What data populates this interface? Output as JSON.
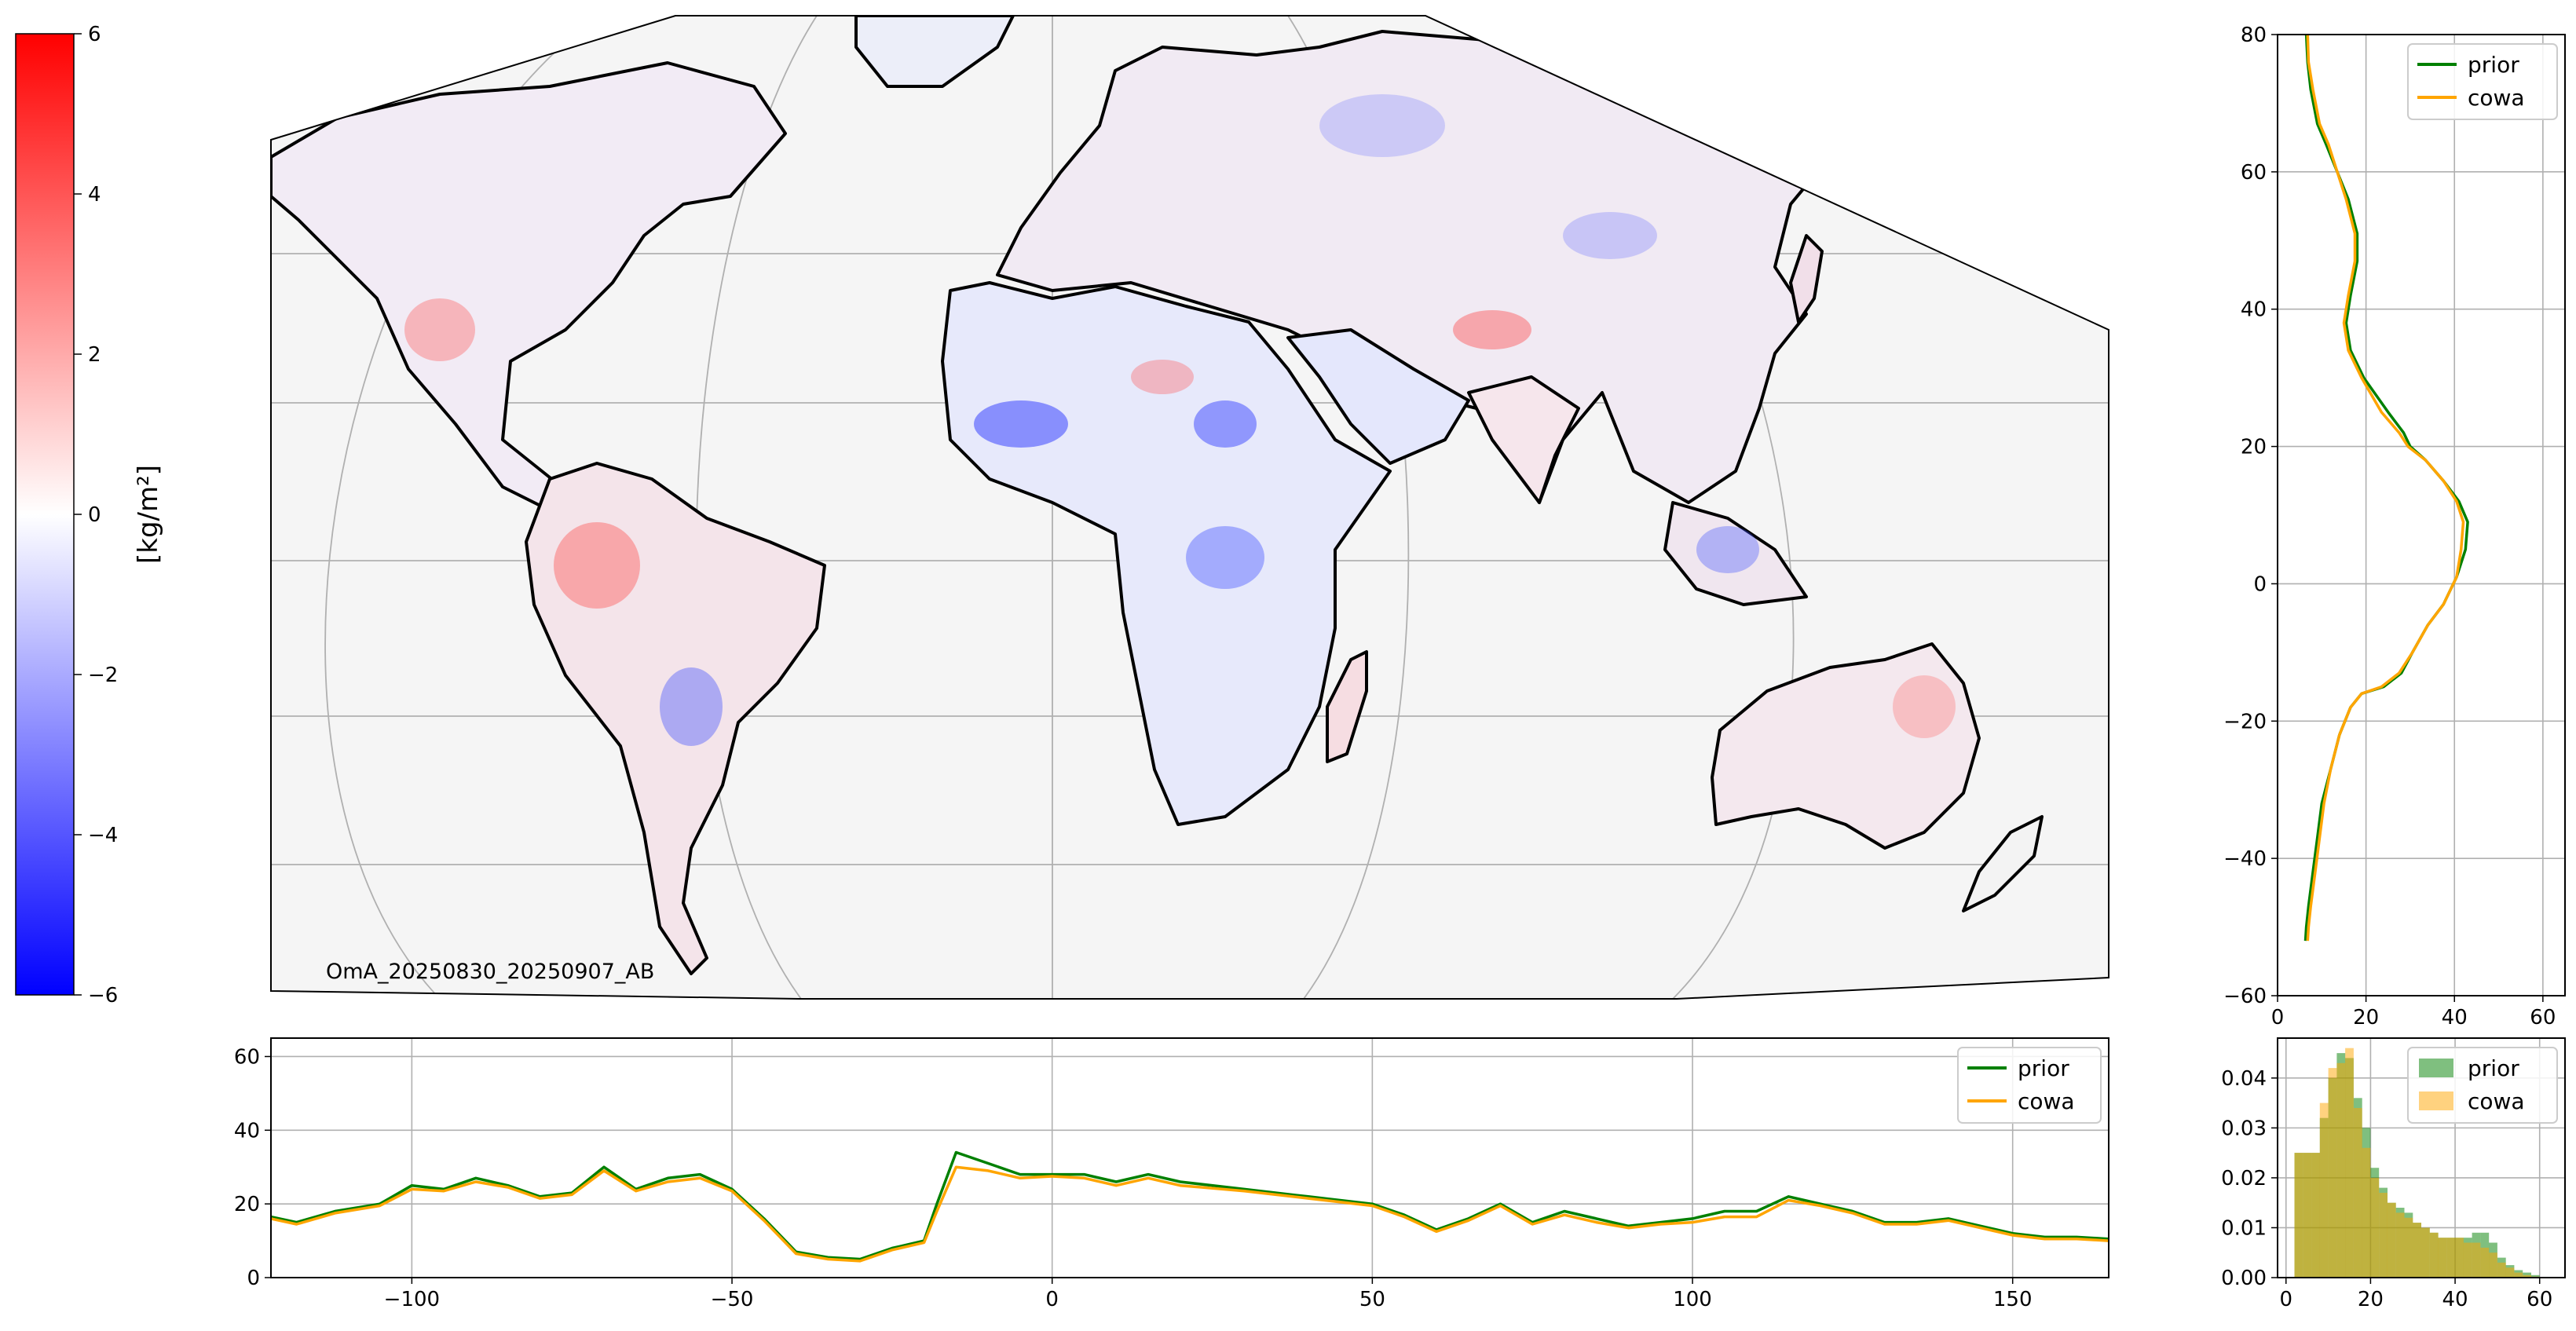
{
  "colors": {
    "prior": "#008000",
    "cowa": "#ffa500",
    "negative": "#0000ff",
    "positive": "#ff0000",
    "grid": "#b0b0b0",
    "land_outline": "#000000",
    "ocean": "#f5f5f5"
  },
  "colorbar": {
    "label": "[kg/m²]",
    "ticks": [
      6,
      4,
      2,
      0,
      -2,
      -4,
      -6
    ],
    "tick_labels": [
      "6",
      "4",
      "2",
      "0",
      "−2",
      "−4",
      "−6"
    ]
  },
  "map": {
    "annotation": "OmA_20250830_20250907_AB"
  },
  "chart_data": [
    {
      "type": "line",
      "subject": "latitude-profile",
      "xlim": [
        0,
        65
      ],
      "ylim": [
        -60,
        80
      ],
      "xticks": [
        0,
        20,
        40,
        60
      ],
      "yticks": [
        -60,
        -40,
        -20,
        0,
        20,
        40,
        60,
        80
      ],
      "xtick_labels": [
        "0",
        "20",
        "40",
        "60"
      ],
      "ytick_labels": [
        "−60",
        "−40",
        "−20",
        "0",
        "20",
        "40",
        "60",
        "80"
      ],
      "grid": true,
      "legend": "top-right",
      "series": [
        {
          "name": "prior",
          "x": [
            6.5,
            6.8,
            7.5,
            9,
            11,
            13.5,
            16,
            18,
            18,
            16.5,
            15.5,
            16.5,
            19.5,
            25,
            28.5,
            30,
            33.5,
            37.5,
            41,
            43,
            42.5,
            40.5,
            37.5,
            34,
            30.5,
            28,
            24,
            19,
            16.5,
            14,
            12,
            10,
            9,
            8,
            7,
            6.5,
            6.3
          ],
          "y": [
            80,
            76,
            72,
            67,
            64,
            60,
            56,
            51,
            47,
            42,
            38,
            34,
            30,
            25,
            22,
            20,
            18,
            15,
            12,
            9,
            5,
            1,
            -3,
            -6,
            -10,
            -13,
            -15,
            -16,
            -18,
            -22,
            -27,
            -32,
            -37,
            -42,
            -47,
            -50,
            -52
          ]
        },
        {
          "name": "cowa",
          "x": [
            6.8,
            7,
            8,
            9.5,
            11.5,
            13.5,
            15.5,
            17.5,
            17.5,
            16,
            15,
            16,
            19,
            23.5,
            27.5,
            29.5,
            33.5,
            37.5,
            40.5,
            42,
            41.5,
            40.5,
            37.5,
            34,
            30.5,
            27.5,
            23.5,
            19,
            16.5,
            14,
            12,
            10.5,
            9.5,
            8.5,
            7.5,
            7,
            6.8
          ],
          "y": [
            80,
            76,
            72,
            67,
            64,
            60,
            56,
            51,
            47,
            42,
            38,
            34,
            30,
            25,
            22,
            20,
            18,
            15,
            12,
            9,
            5,
            1,
            -3,
            -6,
            -10,
            -13,
            -15,
            -16,
            -18,
            -22,
            -27,
            -32,
            -37,
            -42,
            -47,
            -50,
            -52
          ]
        }
      ]
    },
    {
      "type": "line",
      "subject": "longitude-profile",
      "xlim": [
        -122,
        165
      ],
      "ylim": [
        0,
        65
      ],
      "xticks": [
        -100,
        -50,
        0,
        50,
        100,
        150
      ],
      "yticks": [
        0,
        20,
        40,
        60
      ],
      "xtick_labels": [
        "−100",
        "−50",
        "0",
        "50",
        "100",
        "150"
      ],
      "ytick_labels": [
        "0",
        "20",
        "40",
        "60"
      ],
      "grid": true,
      "legend": "top-right",
      "series": [
        {
          "name": "prior",
          "x": [
            -122,
            -118,
            -112,
            -105,
            -100,
            -95,
            -90,
            -85,
            -80,
            -75,
            -70,
            -65,
            -60,
            -55,
            -50,
            -45,
            -40,
            -35,
            -30,
            -25,
            -20,
            -18,
            -15,
            -10,
            -5,
            0,
            5,
            10,
            15,
            20,
            30,
            40,
            50,
            55,
            60,
            65,
            70,
            75,
            80,
            85,
            90,
            95,
            100,
            105,
            110,
            115,
            120,
            125,
            130,
            135,
            140,
            145,
            150,
            155,
            160,
            165
          ],
          "y": [
            16.5,
            15,
            18,
            20,
            25,
            24,
            27,
            25,
            22,
            23,
            30,
            24,
            27,
            28,
            24,
            16,
            7,
            5.5,
            5,
            8,
            10,
            20,
            34,
            31,
            28,
            28,
            28,
            26,
            28,
            26,
            24,
            22,
            20,
            17,
            13,
            16,
            20,
            15,
            18,
            16,
            14,
            15,
            16,
            18,
            18,
            22,
            20,
            18,
            15,
            15,
            16,
            14,
            12,
            11,
            11,
            10.5
          ]
        },
        {
          "name": "cowa",
          "x": [
            -122,
            -118,
            -112,
            -105,
            -100,
            -95,
            -90,
            -85,
            -80,
            -75,
            -70,
            -65,
            -60,
            -55,
            -50,
            -45,
            -40,
            -35,
            -30,
            -25,
            -20,
            -18,
            -15,
            -10,
            -5,
            0,
            5,
            10,
            15,
            20,
            30,
            40,
            50,
            55,
            60,
            65,
            70,
            75,
            80,
            85,
            90,
            95,
            100,
            105,
            110,
            115,
            120,
            125,
            130,
            135,
            140,
            145,
            150,
            155,
            160,
            165
          ],
          "y": [
            16,
            14.5,
            17.5,
            19.5,
            24,
            23.5,
            26,
            24.5,
            21.5,
            22.5,
            29,
            23.5,
            26,
            27,
            23.5,
            15.5,
            6.5,
            5,
            4.5,
            7.5,
            9.5,
            18,
            30,
            29,
            27,
            27.5,
            27,
            25,
            27,
            25,
            23.5,
            21.5,
            19.5,
            16.5,
            12.5,
            15.5,
            19.5,
            14.5,
            17,
            15,
            13.5,
            14.5,
            15,
            16.5,
            16.5,
            21,
            19.5,
            17.5,
            14.5,
            14.5,
            15.5,
            13.5,
            11.5,
            10.5,
            10.5,
            10
          ]
        }
      ]
    },
    {
      "type": "bar",
      "subject": "histogram",
      "xlim": [
        -2,
        66
      ],
      "ylim": [
        0,
        0.048
      ],
      "xticks": [
        0,
        20,
        40,
        60
      ],
      "yticks": [
        0,
        0.01,
        0.02,
        0.03,
        0.04
      ],
      "xtick_labels": [
        "0",
        "20",
        "40",
        "60"
      ],
      "ytick_labels": [
        "0.00",
        "0.01",
        "0.02",
        "0.03",
        "0.04"
      ],
      "grid": true,
      "legend": "top-right",
      "bin_edges": [
        2,
        4,
        6,
        8,
        10,
        12,
        14,
        16,
        18,
        20,
        22,
        24,
        26,
        28,
        30,
        32,
        34,
        36,
        38,
        40,
        42,
        44,
        46,
        48,
        50,
        52,
        54,
        56,
        58,
        60
      ],
      "series": [
        {
          "name": "prior",
          "values": [
            0.025,
            0.025,
            0.025,
            0.032,
            0.04,
            0.045,
            0.044,
            0.036,
            0.03,
            0.022,
            0.018,
            0.015,
            0.014,
            0.013,
            0.011,
            0.01,
            0.009,
            0.008,
            0.008,
            0.008,
            0.008,
            0.009,
            0.009,
            0.007,
            0.004,
            0.0025,
            0.0015,
            0.001,
            0.0005
          ]
        },
        {
          "name": "cowa",
          "values": [
            0.025,
            0.025,
            0.025,
            0.035,
            0.042,
            0.043,
            0.046,
            0.034,
            0.026,
            0.02,
            0.017,
            0.015,
            0.013,
            0.012,
            0.011,
            0.01,
            0.009,
            0.008,
            0.008,
            0.008,
            0.007,
            0.007,
            0.006,
            0.005,
            0.003,
            0.002,
            0.001,
            0.0005,
            0.0002
          ]
        }
      ]
    }
  ]
}
